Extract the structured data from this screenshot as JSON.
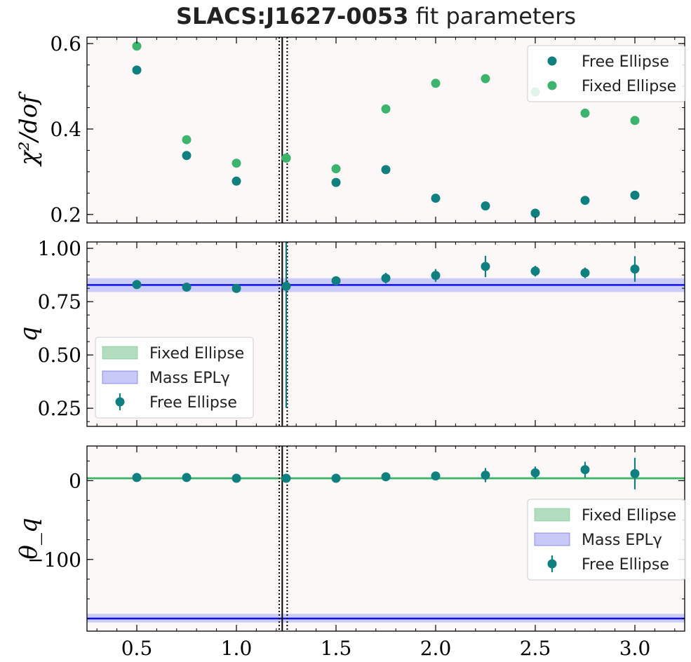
{
  "figure": {
    "title_bold": "SLACS:J1627-0053",
    "title_rest": " fit parameters"
  },
  "colors": {
    "panel_bg": "#fcf8f7",
    "free": "#0f7f7f",
    "fixed": "#3cb46e",
    "fixed_band": "#b3ddbf",
    "mass": "#1010ee",
    "mass_band": "#c9c9f8"
  },
  "chart_data": [
    {
      "type": "scatter",
      "ylabel": "χ²/dof",
      "ylim": [
        0.18,
        0.615
      ],
      "yticks": [
        0.2,
        0.4,
        0.6
      ],
      "ytick_labels": [
        "0.2",
        "0.4",
        "0.6"
      ],
      "xlim": [
        0.25,
        3.25
      ],
      "legend_position": "top-right",
      "vlines_solid": [
        1.23
      ],
      "vlines_dotted": [
        1.215,
        1.255
      ],
      "series": [
        {
          "name": "Free Ellipse",
          "color_key": "free",
          "x": [
            0.5,
            0.75,
            1.0,
            1.25,
            1.5,
            1.75,
            2.0,
            2.25,
            2.5,
            2.75,
            3.0
          ],
          "y": [
            0.538,
            0.338,
            0.278,
            0.332,
            0.275,
            0.305,
            0.238,
            0.22,
            0.203,
            0.233,
            0.245
          ]
        },
        {
          "name": "Fixed Ellipse",
          "color_key": "fixed",
          "x": [
            0.5,
            0.75,
            1.0,
            1.25,
            1.5,
            1.75,
            2.0,
            2.25,
            2.5,
            2.75,
            3.0
          ],
          "y": [
            0.594,
            0.375,
            0.32,
            0.332,
            0.307,
            0.447,
            0.507,
            0.518,
            0.487,
            0.437,
            0.42
          ]
        }
      ]
    },
    {
      "type": "scatter",
      "ylabel": "q",
      "ylim": [
        0.165,
        1.03
      ],
      "yticks": [
        0.25,
        0.5,
        0.75,
        1.0
      ],
      "ytick_labels": [
        "0.25",
        "0.50",
        "0.75",
        "1.00"
      ],
      "xlim": [
        0.25,
        3.25
      ],
      "legend_position": "bottom-left",
      "vlines_solid": [
        1.23
      ],
      "vlines_dotted": [
        1.215,
        1.255
      ],
      "bands": [
        {
          "name": "Fixed Ellipse",
          "color_key": "fixed_band",
          "line_color_key": "fixed",
          "center": 0.828,
          "low": 0.826,
          "high": 0.83
        },
        {
          "name": "Mass EPLγ",
          "color_key": "mass_band",
          "line_color_key": "mass",
          "center": 0.828,
          "low": 0.795,
          "high": 0.86
        }
      ],
      "series": [
        {
          "name": "Free Ellipse",
          "color_key": "free",
          "x": [
            0.5,
            0.75,
            1.0,
            1.25,
            1.5,
            1.75,
            2.0,
            2.25,
            2.5,
            2.75,
            3.0
          ],
          "y": [
            0.83,
            0.818,
            0.812,
            0.822,
            0.848,
            0.86,
            0.873,
            0.915,
            0.893,
            0.885,
            0.903
          ],
          "yerr": [
            0.008,
            0.008,
            0.008,
            0.57,
            0.02,
            0.025,
            0.03,
            0.05,
            0.025,
            0.025,
            0.06
          ]
        }
      ]
    },
    {
      "type": "scatter",
      "ylabel": "θ_q",
      "ylim": [
        -191,
        44
      ],
      "yticks": [
        0,
        -100
      ],
      "ytick_labels": [
        "0",
        "−100"
      ],
      "xlim": [
        0.25,
        3.25
      ],
      "xticks": [
        0.5,
        1.0,
        1.5,
        2.0,
        2.5,
        3.0
      ],
      "xtick_labels": [
        "0.5",
        "1.0",
        "1.5",
        "2.0",
        "2.5",
        "3.0"
      ],
      "legend_position": "center-right",
      "vlines_solid": [
        1.23
      ],
      "vlines_dotted": [
        1.215,
        1.255
      ],
      "bands": [
        {
          "name": "Fixed Ellipse",
          "color_key": "fixed_band",
          "line_color_key": "fixed",
          "center": 3,
          "low": 1.5,
          "high": 4.5
        },
        {
          "name": "Mass EPLγ",
          "color_key": "mass_band",
          "line_color_key": "mass",
          "center": -175,
          "low": -180,
          "high": -169
        }
      ],
      "series": [
        {
          "name": "Free Ellipse",
          "color_key": "free",
          "x": [
            0.5,
            0.75,
            1.0,
            1.25,
            1.5,
            1.75,
            2.0,
            2.25,
            2.5,
            2.75,
            3.0
          ],
          "y": [
            4,
            4,
            3,
            3,
            3,
            5,
            6,
            7,
            10,
            14,
            9
          ],
          "yerr": [
            1.5,
            1.5,
            1.5,
            1.5,
            1.5,
            2,
            2,
            9,
            8,
            10,
            20
          ]
        }
      ]
    }
  ]
}
